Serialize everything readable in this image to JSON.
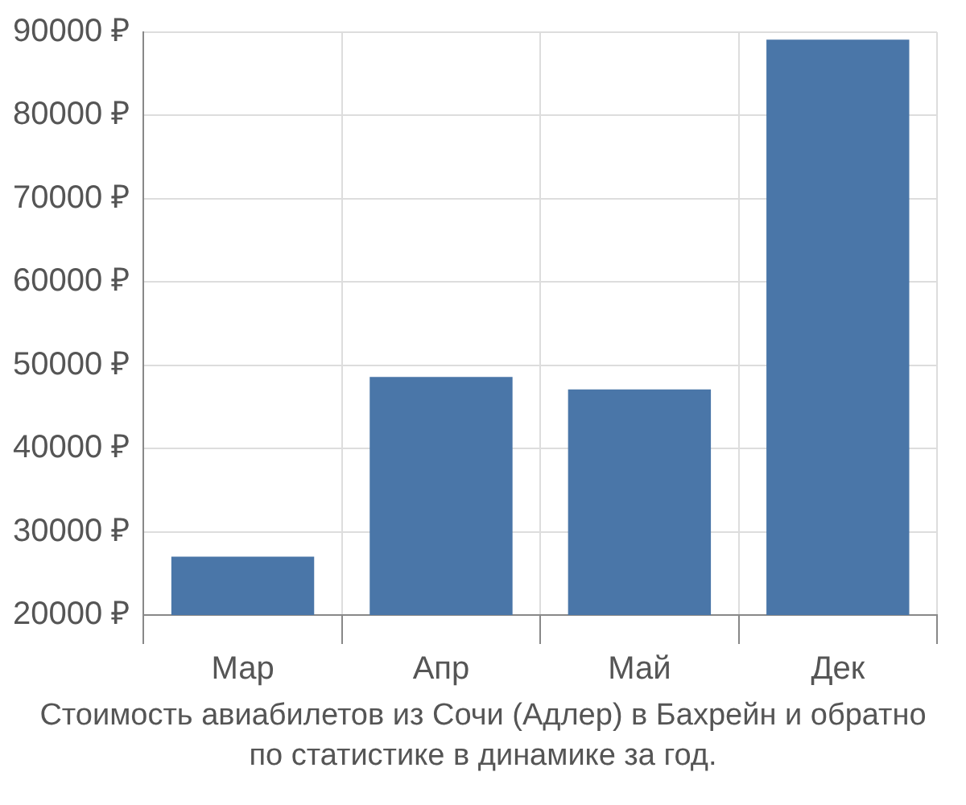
{
  "chart_data": {
    "type": "bar",
    "categories": [
      "Мар",
      "Апр",
      "Май",
      "Дек"
    ],
    "values": [
      27000,
      48600,
      47100,
      89100
    ],
    "color": "#4a76a8",
    "ylim": [
      20000,
      90000
    ],
    "yticks": [
      {
        "value": 20000,
        "label": "20000 ₽"
      },
      {
        "value": 30000,
        "label": "30000 ₽"
      },
      {
        "value": 40000,
        "label": "40000 ₽"
      },
      {
        "value": 50000,
        "label": "50000 ₽"
      },
      {
        "value": 60000,
        "label": "60000 ₽"
      },
      {
        "value": 70000,
        "label": "70000 ₽"
      },
      {
        "value": 80000,
        "label": "80000 ₽"
      },
      {
        "value": 90000,
        "label": "90000 ₽"
      }
    ],
    "grid": true,
    "annotations": [
      "Стоимость авиабилетов из Сочи (Адлер) в Бахрейн и обратно",
      "по статистике в динамике за год."
    ]
  }
}
